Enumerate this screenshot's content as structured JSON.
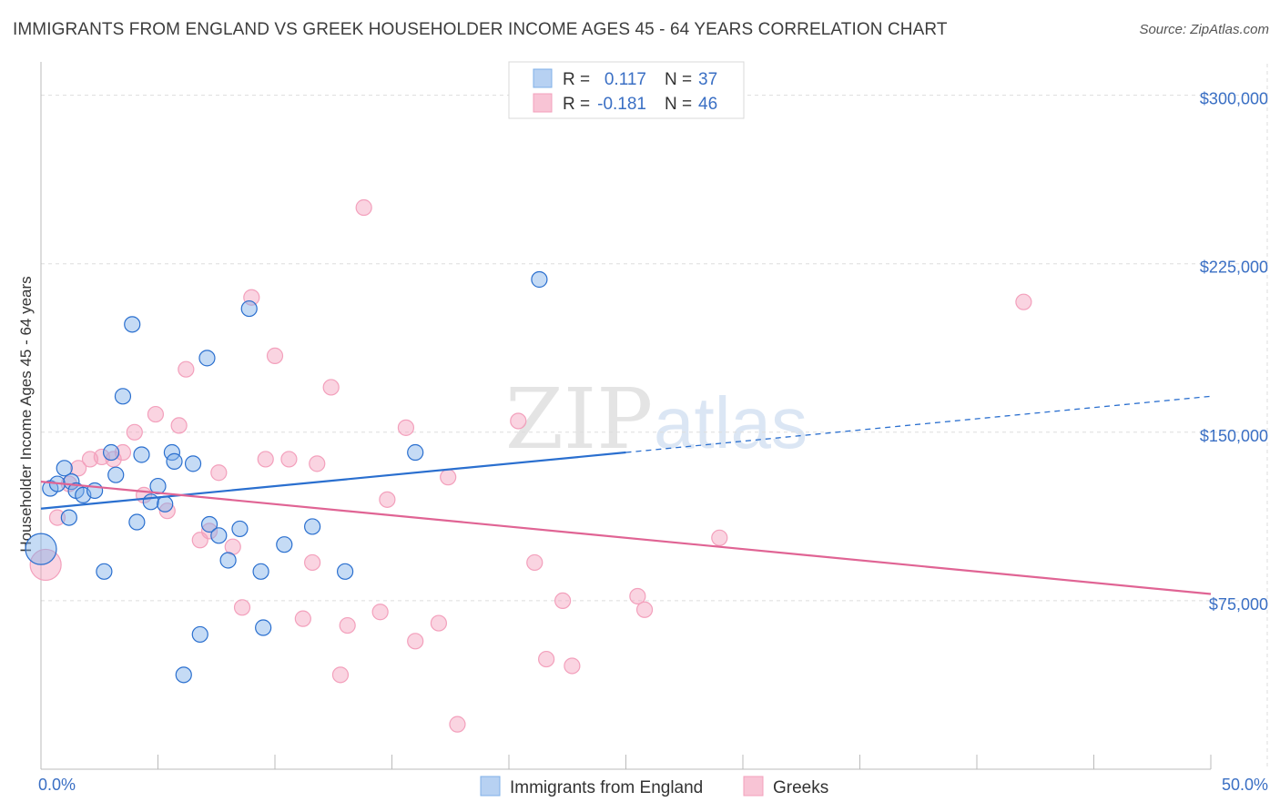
{
  "title": "IMMIGRANTS FROM ENGLAND VS GREEK HOUSEHOLDER INCOME AGES 45 - 64 YEARS CORRELATION CHART",
  "source": "Source: ZipAtlas.com",
  "watermark": {
    "zip": "ZIP",
    "atlas": "atlas"
  },
  "colors": {
    "england": "#7fb0e8",
    "england_line": "#2a6fcf",
    "greeks": "#f3a0bc",
    "greeks_line": "#e06494",
    "axis_text": "#3a6fc4",
    "grid": "#dddddd"
  },
  "legend": {
    "rows": [
      {
        "r_label": "R =",
        "r_value": "0.117",
        "n_label": "N =",
        "n_value": "37"
      },
      {
        "r_label": "R =",
        "r_value": "-0.181",
        "n_label": "N =",
        "n_value": "46"
      }
    ]
  },
  "chart_data": {
    "type": "scatter",
    "title": "IMMIGRANTS FROM ENGLAND VS GREEK HOUSEHOLDER INCOME AGES 45 - 64 YEARS CORRELATION CHART",
    "xlabel": "",
    "ylabel": "Householder Income Ages 45 - 64 years",
    "xlim": [
      0,
      50
    ],
    "ylim": [
      0,
      312000
    ],
    "x_tick_labels": {
      "min": "0.0%",
      "max": "50.0%"
    },
    "y_ticks": [
      {
        "value": 75000,
        "label": "$75,000"
      },
      {
        "value": 150000,
        "label": "$150,000"
      },
      {
        "value": 225000,
        "label": "$225,000"
      },
      {
        "value": 300000,
        "label": "$300,000"
      }
    ],
    "grid": true,
    "legend_position": "top-center",
    "series": [
      {
        "name": "Immigrants from England",
        "r": 0.117,
        "n": 37,
        "trend": {
          "x0": 0,
          "y0": 116000,
          "x1": 25,
          "y1": 141000,
          "dashed_to_x": 50,
          "dashed_to_y": 166000
        },
        "points": [
          {
            "x": 0.0,
            "y": 98000,
            "big": true
          },
          {
            "x": 0.4,
            "y": 125000
          },
          {
            "x": 0.7,
            "y": 127000
          },
          {
            "x": 1.0,
            "y": 134000
          },
          {
            "x": 1.2,
            "y": 112000
          },
          {
            "x": 1.3,
            "y": 128000
          },
          {
            "x": 1.5,
            "y": 124000
          },
          {
            "x": 1.8,
            "y": 122000
          },
          {
            "x": 2.3,
            "y": 124000
          },
          {
            "x": 2.7,
            "y": 88000
          },
          {
            "x": 3.0,
            "y": 141000
          },
          {
            "x": 3.2,
            "y": 131000
          },
          {
            "x": 3.5,
            "y": 166000
          },
          {
            "x": 3.9,
            "y": 198000
          },
          {
            "x": 4.1,
            "y": 110000
          },
          {
            "x": 4.3,
            "y": 140000
          },
          {
            "x": 4.7,
            "y": 119000
          },
          {
            "x": 5.0,
            "y": 126000
          },
          {
            "x": 5.3,
            "y": 118000
          },
          {
            "x": 5.6,
            "y": 141000
          },
          {
            "x": 5.7,
            "y": 137000
          },
          {
            "x": 6.1,
            "y": 42000
          },
          {
            "x": 6.5,
            "y": 136000
          },
          {
            "x": 6.8,
            "y": 60000
          },
          {
            "x": 7.1,
            "y": 183000
          },
          {
            "x": 7.2,
            "y": 109000
          },
          {
            "x": 7.6,
            "y": 104000
          },
          {
            "x": 8.0,
            "y": 93000
          },
          {
            "x": 8.5,
            "y": 107000
          },
          {
            "x": 8.9,
            "y": 205000
          },
          {
            "x": 9.4,
            "y": 88000
          },
          {
            "x": 9.5,
            "y": 63000
          },
          {
            "x": 10.4,
            "y": 100000
          },
          {
            "x": 11.6,
            "y": 108000
          },
          {
            "x": 13.0,
            "y": 88000
          },
          {
            "x": 16.0,
            "y": 141000
          },
          {
            "x": 21.3,
            "y": 218000
          }
        ]
      },
      {
        "name": "Greeks",
        "r": -0.181,
        "n": 46,
        "trend": {
          "x0": 0,
          "y0": 128000,
          "x1": 50,
          "y1": 78000
        },
        "points": [
          {
            "x": 0.2,
            "y": 91000,
            "big": true
          },
          {
            "x": 0.7,
            "y": 112000
          },
          {
            "x": 1.2,
            "y": 127000
          },
          {
            "x": 1.6,
            "y": 134000
          },
          {
            "x": 2.1,
            "y": 138000
          },
          {
            "x": 2.6,
            "y": 139000
          },
          {
            "x": 3.1,
            "y": 138000
          },
          {
            "x": 3.5,
            "y": 141000
          },
          {
            "x": 4.0,
            "y": 150000
          },
          {
            "x": 4.4,
            "y": 122000
          },
          {
            "x": 4.9,
            "y": 158000
          },
          {
            "x": 5.4,
            "y": 115000
          },
          {
            "x": 5.9,
            "y": 153000
          },
          {
            "x": 6.2,
            "y": 178000
          },
          {
            "x": 6.8,
            "y": 102000
          },
          {
            "x": 7.2,
            "y": 106000
          },
          {
            "x": 7.6,
            "y": 132000
          },
          {
            "x": 8.2,
            "y": 99000
          },
          {
            "x": 8.6,
            "y": 72000
          },
          {
            "x": 9.0,
            "y": 210000
          },
          {
            "x": 9.6,
            "y": 138000
          },
          {
            "x": 10.0,
            "y": 184000
          },
          {
            "x": 10.6,
            "y": 138000
          },
          {
            "x": 11.2,
            "y": 67000
          },
          {
            "x": 11.6,
            "y": 92000
          },
          {
            "x": 11.8,
            "y": 136000
          },
          {
            "x": 12.4,
            "y": 170000
          },
          {
            "x": 12.8,
            "y": 42000
          },
          {
            "x": 13.1,
            "y": 64000
          },
          {
            "x": 13.8,
            "y": 250000
          },
          {
            "x": 14.5,
            "y": 70000
          },
          {
            "x": 14.8,
            "y": 120000
          },
          {
            "x": 15.6,
            "y": 152000
          },
          {
            "x": 16.0,
            "y": 57000
          },
          {
            "x": 17.0,
            "y": 65000
          },
          {
            "x": 17.4,
            "y": 130000
          },
          {
            "x": 17.8,
            "y": 20000
          },
          {
            "x": 20.4,
            "y": 155000
          },
          {
            "x": 21.1,
            "y": 92000
          },
          {
            "x": 21.6,
            "y": 49000
          },
          {
            "x": 22.3,
            "y": 75000
          },
          {
            "x": 22.7,
            "y": 46000
          },
          {
            "x": 25.5,
            "y": 77000
          },
          {
            "x": 25.8,
            "y": 71000
          },
          {
            "x": 29.0,
            "y": 103000
          },
          {
            "x": 42.0,
            "y": 208000
          }
        ]
      }
    ]
  }
}
